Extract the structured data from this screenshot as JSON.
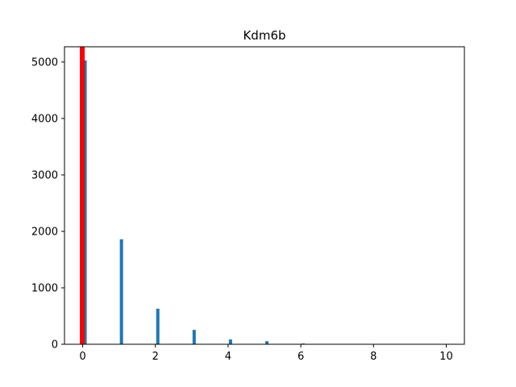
{
  "chart_data": {
    "type": "bar",
    "title": "Kdm6b",
    "xlabel": "",
    "ylabel": "",
    "xlim": [
      -0.5,
      10.5
    ],
    "ylim": [
      0,
      5270
    ],
    "x_ticks": [
      0,
      2,
      4,
      6,
      8,
      10
    ],
    "y_ticks": [
      0,
      1000,
      2000,
      3000,
      4000,
      5000
    ],
    "grid": false,
    "series": [
      {
        "color": "#1f77b4",
        "x": [
          0,
          1,
          2,
          3,
          4,
          5,
          6,
          7,
          8,
          9,
          10
        ],
        "values": [
          5030,
          1860,
          630,
          255,
          85,
          55,
          15,
          5,
          3,
          2,
          2
        ]
      },
      {
        "color": "#ff0000",
        "x": [
          0
        ],
        "values": [
          5270
        ]
      }
    ]
  }
}
